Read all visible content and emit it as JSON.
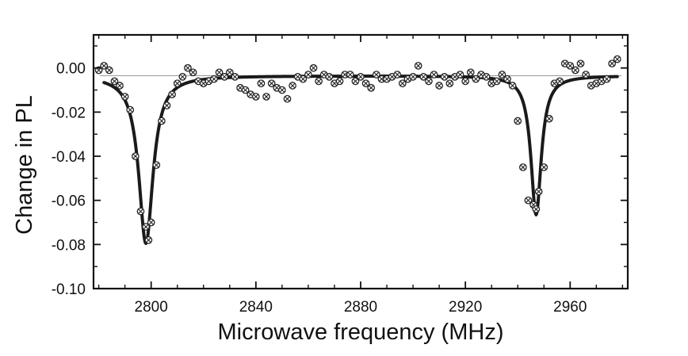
{
  "chart_data": {
    "type": "scatter",
    "xlabel": "Microwave frequency (MHz)",
    "ylabel": "Change in PL",
    "xlim": [
      2778,
      2982
    ],
    "ylim": [
      -0.1,
      0.015
    ],
    "x_ticks": [
      2800,
      2840,
      2880,
      2920,
      2960
    ],
    "x_tick_labels": [
      "2800",
      "2840",
      "2880",
      "2920",
      "2960"
    ],
    "y_ticks": [
      0.0,
      -0.02,
      -0.04,
      -0.06,
      -0.08,
      -0.1
    ],
    "y_tick_labels": [
      "0.00",
      "-0.02",
      "-0.04",
      "-0.06",
      "-0.08",
      "-0.10"
    ],
    "grid": false,
    "legend": "none",
    "baseline": -0.0035,
    "colors": {
      "axis": "#111111",
      "fit": "#1a1a1a",
      "marker": "#222222",
      "baseline": "#777777"
    },
    "series": [
      {
        "kind": "scatter",
        "marker": "circle-x",
        "points": [
          [
            2780,
            -0.001
          ],
          [
            2782,
            0.001
          ],
          [
            2784,
            -0.001
          ],
          [
            2786,
            -0.006
          ],
          [
            2788,
            -0.008
          ],
          [
            2790,
            -0.013
          ],
          [
            2792,
            -0.019
          ],
          [
            2794,
            -0.04
          ],
          [
            2796,
            -0.065
          ],
          [
            2798,
            -0.072
          ],
          [
            2799,
            -0.078
          ],
          [
            2800,
            -0.07
          ],
          [
            2802,
            -0.044
          ],
          [
            2804,
            -0.024
          ],
          [
            2806,
            -0.017
          ],
          [
            2808,
            -0.012
          ],
          [
            2810,
            -0.007
          ],
          [
            2812,
            -0.004
          ],
          [
            2814,
            0.0
          ],
          [
            2816,
            -0.002
          ],
          [
            2818,
            -0.006
          ],
          [
            2820,
            -0.007
          ],
          [
            2822,
            -0.006
          ],
          [
            2824,
            -0.005
          ],
          [
            2826,
            -0.002
          ],
          [
            2828,
            -0.004
          ],
          [
            2830,
            -0.002
          ],
          [
            2832,
            -0.004
          ],
          [
            2834,
            -0.009
          ],
          [
            2836,
            -0.01
          ],
          [
            2838,
            -0.012
          ],
          [
            2840,
            -0.013
          ],
          [
            2842,
            -0.007
          ],
          [
            2844,
            -0.013
          ],
          [
            2846,
            -0.007
          ],
          [
            2848,
            -0.009
          ],
          [
            2850,
            -0.01
          ],
          [
            2852,
            -0.014
          ],
          [
            2854,
            -0.008
          ],
          [
            2856,
            -0.004
          ],
          [
            2858,
            -0.005
          ],
          [
            2860,
            -0.003
          ],
          [
            2862,
            0.0
          ],
          [
            2864,
            -0.006
          ],
          [
            2866,
            -0.003
          ],
          [
            2868,
            -0.004
          ],
          [
            2870,
            -0.007
          ],
          [
            2872,
            -0.006
          ],
          [
            2874,
            -0.003
          ],
          [
            2876,
            -0.003
          ],
          [
            2878,
            -0.006
          ],
          [
            2880,
            -0.004
          ],
          [
            2882,
            -0.007
          ],
          [
            2884,
            -0.009
          ],
          [
            2886,
            -0.003
          ],
          [
            2888,
            -0.005
          ],
          [
            2890,
            -0.005
          ],
          [
            2892,
            -0.004
          ],
          [
            2894,
            -0.003
          ],
          [
            2896,
            -0.007
          ],
          [
            2898,
            -0.005
          ],
          [
            2900,
            -0.004
          ],
          [
            2902,
            0.001
          ],
          [
            2904,
            -0.004
          ],
          [
            2906,
            -0.006
          ],
          [
            2908,
            -0.003
          ],
          [
            2910,
            -0.008
          ],
          [
            2912,
            -0.004
          ],
          [
            2914,
            -0.007
          ],
          [
            2916,
            -0.004
          ],
          [
            2918,
            -0.003
          ],
          [
            2920,
            -0.006
          ],
          [
            2922,
            -0.002
          ],
          [
            2924,
            -0.005
          ],
          [
            2926,
            -0.003
          ],
          [
            2928,
            -0.004
          ],
          [
            2930,
            -0.007
          ],
          [
            2932,
            -0.006
          ],
          [
            2934,
            -0.003
          ],
          [
            2936,
            -0.005
          ],
          [
            2938,
            -0.008
          ],
          [
            2940,
            -0.024
          ],
          [
            2942,
            -0.045
          ],
          [
            2944,
            -0.06
          ],
          [
            2946,
            -0.062
          ],
          [
            2947,
            -0.064
          ],
          [
            2948,
            -0.056
          ],
          [
            2950,
            -0.045
          ],
          [
            2952,
            -0.023
          ],
          [
            2954,
            -0.007
          ],
          [
            2956,
            -0.006
          ],
          [
            2958,
            0.002
          ],
          [
            2960,
            0.001
          ],
          [
            2962,
            -0.001
          ],
          [
            2964,
            0.002
          ],
          [
            2966,
            -0.003
          ],
          [
            2968,
            -0.008
          ],
          [
            2970,
            -0.007
          ],
          [
            2972,
            -0.006
          ],
          [
            2974,
            -0.005
          ],
          [
            2976,
            0.002
          ],
          [
            2978,
            0.004
          ]
        ]
      },
      {
        "kind": "line",
        "fit": "lorentzian",
        "offset": -0.0035,
        "dips": [
          {
            "center": 2798,
            "depth": 0.076,
            "hwhm": 3.3
          },
          {
            "center": 2947,
            "depth": 0.063,
            "hwhm": 2.4
          }
        ],
        "x_start": 2782,
        "x_end": 2978
      }
    ]
  }
}
